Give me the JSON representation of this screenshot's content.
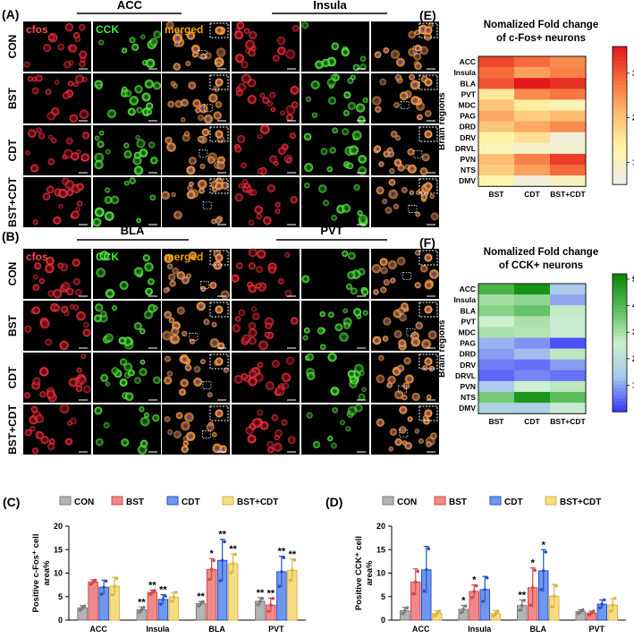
{
  "panels": {
    "A": {
      "letter": "(A)",
      "regions": [
        "ACC",
        "Insula"
      ],
      "channels": [
        "cfos",
        "CCK",
        "merged"
      ],
      "rows": [
        "CON",
        "BST",
        "CDT",
        "BST+CDT"
      ]
    },
    "B": {
      "letter": "(B)",
      "regions": [
        "BLA",
        "PVT"
      ],
      "channels": [
        "cfos",
        "CCK",
        "merged"
      ],
      "rows": [
        "CON",
        "BST",
        "CDT",
        "BST+CDT"
      ]
    }
  },
  "colors": {
    "cfos": "#e0303a",
    "cck": "#2fcf2f",
    "merged": "#f0a500",
    "nucleus": "#3a5cff",
    "con": "#b4b4b4",
    "bst": "#f08a8a",
    "cdt": "#6e98ee",
    "bstcdt": "#f7dd82"
  },
  "chart_data": [
    {
      "type": "heatmap",
      "letter": "(E)",
      "title": "Nomalized Fold change of c-Fos+ neurons",
      "title_lines": [
        "Nomalized Fold change",
        "of c-Fos+ neurons"
      ],
      "ylabel": "Brain regions",
      "columns": [
        "BST",
        "CDT",
        "BST+CDT"
      ],
      "rows": [
        "ACC",
        "Insula",
        "BLA",
        "PVT",
        "MDC",
        "PAG",
        "DRD",
        "DRV",
        "DRVL",
        "PVN",
        "NTS",
        "DMV"
      ],
      "values": [
        [
          3.2,
          2.9,
          2.6
        ],
        [
          2.9,
          2.4,
          2.7
        ],
        [
          3.1,
          3.6,
          3.4
        ],
        [
          1.5,
          2.6,
          2.8
        ],
        [
          2.0,
          1.4,
          1.1
        ],
        [
          2.3,
          1.9,
          2.1
        ],
        [
          2.0,
          2.3,
          2.6
        ],
        [
          1.3,
          1.6,
          0.7
        ],
        [
          1.1,
          0.9,
          0.8
        ],
        [
          2.1,
          2.7,
          3.3
        ],
        [
          1.9,
          2.4,
          2.9
        ],
        [
          1.2,
          0.7,
          1.0
        ]
      ],
      "colorbar_ticks": [
        "1",
        "2",
        "3"
      ],
      "colorbar_range": [
        0.5,
        3.6
      ],
      "colormap": [
        "#ececec",
        "#fff6a8",
        "#fdc276",
        "#f8743f",
        "#e31a1c"
      ]
    },
    {
      "type": "heatmap",
      "letter": "(F)",
      "title": "Nomalized Fold change of CCK+ neurons",
      "title_lines": [
        "Nomalized Fold change",
        "of CCK+ neurons"
      ],
      "ylabel": "Brain regions",
      "columns": [
        "BST",
        "CDT",
        "BST+CDT"
      ],
      "rows": [
        "ACC",
        "Insula",
        "BLA",
        "PVT",
        "MDC",
        "PAG",
        "DRD",
        "DRV",
        "DRVL",
        "PVN",
        "NTS",
        "DMV"
      ],
      "values": [
        [
          4.2,
          5.0,
          1.4
        ],
        [
          3.1,
          3.3,
          1.0
        ],
        [
          3.4,
          3.8,
          2.7
        ],
        [
          2.6,
          3.0,
          2.5
        ],
        [
          3.0,
          2.9,
          2.5
        ],
        [
          1.1,
          0.8,
          0.2
        ],
        [
          0.9,
          1.2,
          2.8
        ],
        [
          0.6,
          0.5,
          0.9
        ],
        [
          0.4,
          0.7,
          0.5
        ],
        [
          1.4,
          2.6,
          2.8
        ],
        [
          3.6,
          4.9,
          3.9
        ],
        [
          1.6,
          1.5,
          2.4
        ]
      ],
      "colorbar_ticks": [
        "1",
        "2",
        "3",
        "4",
        "5"
      ],
      "colorbar_range": [
        0,
        5.2
      ],
      "colormap": [
        "#3b3bff",
        "#a9c8ec",
        "#ccefcf",
        "#5cbf5c",
        "#0b8a0b"
      ]
    },
    {
      "type": "bar",
      "letter": "(C)",
      "ylabel_lines": [
        "Positive c-Fos⁺ cell",
        "area%"
      ],
      "ylim": [
        0,
        20
      ],
      "yticks": [
        "0",
        "5",
        "10",
        "15",
        "20"
      ],
      "categories": [
        "ACC",
        "Insula",
        "BLA",
        "PVT"
      ],
      "legend": [
        "CON",
        "BST",
        "CDT",
        "BST+CDT"
      ],
      "series": [
        {
          "name": "CON",
          "values": [
            2.6,
            2.2,
            3.5,
            4.0
          ],
          "errors": [
            0.5,
            0.6,
            0.5,
            0.8
          ],
          "points": [
            [
              2.1,
              2.7,
              3.0
            ],
            [
              1.7,
              2.2,
              2.7
            ],
            [
              3.0,
              3.5,
              3.9
            ],
            [
              3.3,
              4.0,
              4.6
            ]
          ]
        },
        {
          "name": "BST",
          "values": [
            8.1,
            5.9,
            10.8,
            3.2
          ],
          "errors": [
            0.5,
            0.5,
            2.3,
            1.5
          ],
          "points": [
            [
              7.6,
              8.1,
              8.5
            ],
            [
              5.5,
              5.9,
              6.3
            ],
            [
              8.7,
              10.8,
              12.7
            ],
            [
              1.9,
              3.2,
              4.6
            ]
          ]
        },
        {
          "name": "CDT",
          "values": [
            7.0,
            4.4,
            12.7,
            10.3
          ],
          "errors": [
            1.5,
            1.0,
            4.5,
            3.3
          ],
          "points": [
            [
              5.5,
              7.0,
              8.3
            ],
            [
              3.4,
              4.4,
              5.1
            ],
            [
              8.4,
              12.7,
              16.7
            ],
            [
              7.2,
              10.3,
              13.3
            ]
          ]
        },
        {
          "name": "BST+CDT",
          "values": [
            7.2,
            4.9,
            12.0,
            10.6
          ],
          "errors": [
            1.9,
            1.0,
            2.1,
            2.4
          ],
          "points": [
            [
              5.4,
              7.2,
              8.9
            ],
            [
              4.0,
              4.9,
              5.9
            ],
            [
              10.1,
              12.0,
              14.0
            ],
            [
              8.5,
              10.6,
              12.8
            ]
          ]
        }
      ],
      "significance": [
        [
          "",
          "**",
          "**",
          "**"
        ],
        [
          "",
          "**",
          "*",
          "**"
        ],
        [
          "",
          "**",
          "**",
          "**"
        ],
        [
          "",
          "",
          "**",
          "**"
        ]
      ]
    },
    {
      "type": "bar",
      "letter": "(D)",
      "ylabel_lines": [
        "Positive CCK⁺ cell",
        "area%"
      ],
      "ylim": [
        0,
        20
      ],
      "yticks": [
        "0",
        "5",
        "10",
        "15",
        "20"
      ],
      "categories": [
        "ACC",
        "Insula",
        "BLA",
        "PVT"
      ],
      "legend": [
        "CON",
        "BST",
        "CDT",
        "BST+CDT"
      ],
      "series": [
        {
          "name": "CON",
          "values": [
            2.0,
            2.3,
            3.1,
            1.8
          ],
          "errors": [
            0.7,
            0.8,
            1.2,
            0.4
          ],
          "points": [
            [
              1.4,
              2.0,
              2.6
            ],
            [
              1.6,
              2.3,
              3.0
            ],
            [
              2.1,
              3.1,
              4.2
            ],
            [
              1.4,
              1.8,
              2.2
            ]
          ]
        },
        {
          "name": "BST",
          "values": [
            8.1,
            6.1,
            6.9,
            1.5
          ],
          "errors": [
            2.8,
            1.4,
            4.2,
            0.4
          ],
          "points": [
            [
              5.6,
              8.1,
              10.4
            ],
            [
              4.8,
              6.1,
              7.3
            ],
            [
              3.2,
              6.9,
              10.6
            ],
            [
              1.1,
              1.5,
              1.9
            ]
          ]
        },
        {
          "name": "CDT",
          "values": [
            10.7,
            6.5,
            10.5,
            3.4
          ],
          "errors": [
            5.0,
            2.8,
            4.5,
            0.9
          ],
          "points": [
            [
              6.2,
              10.7,
              15.2
            ],
            [
              4.0,
              6.5,
              9.0
            ],
            [
              6.5,
              10.5,
              14.5
            ],
            [
              2.6,
              3.4,
              4.3
            ]
          ]
        },
        {
          "name": "BST+CDT",
          "values": [
            1.4,
            1.4,
            5.1,
            3.2
          ],
          "errors": [
            0.6,
            0.6,
            2.5,
            1.4
          ],
          "points": [
            [
              0.9,
              1.4,
              1.9
            ],
            [
              0.9,
              1.4,
              1.9
            ],
            [
              2.8,
              5.1,
              7.3
            ],
            [
              1.9,
              3.2,
              4.6
            ]
          ]
        }
      ],
      "significance": [
        [
          "",
          "*",
          "**",
          ""
        ],
        [
          "",
          "*",
          "*",
          ""
        ],
        [
          "",
          "",
          "*",
          ""
        ],
        [
          "",
          "",
          "",
          ""
        ]
      ]
    }
  ]
}
